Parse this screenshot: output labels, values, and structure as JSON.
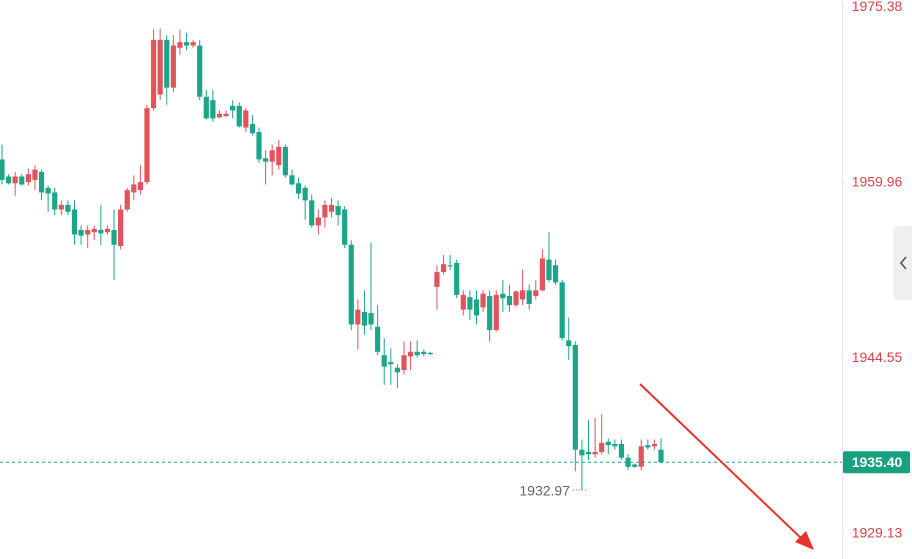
{
  "chart_data": {
    "type": "candlestick",
    "open": [
      1962.0,
      1960.5,
      1959.9,
      1960.5,
      1960.0,
      1960.2,
      1960.9,
      1959.5,
      1959.1,
      1957.6,
      1958.0,
      1957.6,
      1955.8,
      1955.4,
      1955.6,
      1955.8,
      1955.6,
      1955.8,
      1954.4,
      1957.6,
      1959.1,
      1959.3,
      1960.0,
      1966.5,
      1967.7,
      1972.5,
      1968.3,
      1971.8,
      1972.3,
      1972.0,
      1972.0,
      1967.5,
      1967.2,
      1965.7,
      1965.8,
      1966.7,
      1966.7,
      1964.8,
      1965.1,
      1964.4,
      1962.1,
      1961.8,
      1961.5,
      1963.1,
      1960.6,
      1959.9,
      1959.5,
      1958.4,
      1956.2,
      1956.9,
      1957.4,
      1957.9,
      1957.6,
      1954.5,
      1947.5,
      1948.6,
      1948.5,
      1947.3,
      1944.8,
      1944.2,
      1943.7,
      1943.5,
      1944.7,
      1945.1,
      1945.1,
      1945.0,
      1950.8,
      1952.1,
      1952.7,
      1952.9,
      1948.8,
      1949.9,
      1949.7,
      1949.0,
      1950.0,
      1947.0,
      1950.2,
      1950.0,
      1949.2,
      1949.7,
      1950.5,
      1950.0,
      1950.5,
      1953.2,
      1952.7,
      1951.2,
      1946.1,
      1945.7,
      1936.5,
      1936.3,
      1936.1,
      1936.3,
      1937.2,
      1937.0,
      1937.0,
      1935.8,
      1935.2,
      1935.0,
      1936.9,
      1936.8,
      1936.5
    ],
    "high": [
      1963.3,
      1960.7,
      1960.9,
      1960.7,
      1961.2,
      1961.5,
      1961.1,
      1959.7,
      1959.5,
      1958.4,
      1958.4,
      1958.4,
      1956.2,
      1956.2,
      1956.2,
      1958.0,
      1956.2,
      1957.6,
      1958.0,
      1959.5,
      1960.6,
      1961.5,
      1966.8,
      1973.4,
      1973.5,
      1972.9,
      1972.9,
      1973.4,
      1973.1,
      1972.5,
      1972.5,
      1968.1,
      1968.1,
      1966.3,
      1966.3,
      1967.2,
      1967.0,
      1966.5,
      1965.9,
      1964.8,
      1962.8,
      1963.3,
      1963.7,
      1963.3,
      1961.1,
      1960.4,
      1959.7,
      1958.9,
      1957.6,
      1958.4,
      1958.6,
      1958.4,
      1957.9,
      1954.9,
      1949.7,
      1950.5,
      1954.7,
      1949.2,
      1946.3,
      1945.4,
      1944.0,
      1946.0,
      1946.0,
      1946.1,
      1945.3,
      1945.1,
      1952.7,
      1953.6,
      1953.6,
      1953.2,
      1950.5,
      1950.5,
      1950.5,
      1950.5,
      1950.5,
      1950.5,
      1951.4,
      1951.0,
      1950.5,
      1952.3,
      1951.0,
      1951.4,
      1954.1,
      1955.6,
      1953.2,
      1951.4,
      1948.1,
      1946.0,
      1937.4,
      1939.1,
      1939.3,
      1939.6,
      1937.5,
      1937.4,
      1937.4,
      1936.1,
      1935.3,
      1937.4,
      1937.4,
      1937.4,
      1937.5
    ],
    "low": [
      1959.8,
      1959.8,
      1958.8,
      1959.7,
      1959.7,
      1959.3,
      1958.4,
      1957.4,
      1957.1,
      1957.1,
      1957.1,
      1954.5,
      1954.5,
      1954.2,
      1954.9,
      1954.5,
      1955.4,
      1951.4,
      1954.1,
      1957.4,
      1958.4,
      1958.9,
      1959.8,
      1966.3,
      1967.2,
      1966.8,
      1967.9,
      1971.2,
      1971.6,
      1971.8,
      1967.2,
      1965.5,
      1965.3,
      1965.6,
      1965.7,
      1965.6,
      1964.8,
      1964.4,
      1964.1,
      1961.7,
      1959.8,
      1960.6,
      1961.1,
      1960.4,
      1959.7,
      1958.5,
      1956.7,
      1956.0,
      1955.4,
      1956.0,
      1956.9,
      1956.2,
      1954.2,
      1947.0,
      1945.3,
      1946.6,
      1947.0,
      1944.8,
      1942.2,
      1942.2,
      1941.9,
      1943.1,
      1943.5,
      1944.6,
      1944.7,
      1944.8,
      1948.8,
      1951.9,
      1952.3,
      1949.8,
      1948.3,
      1947.9,
      1947.5,
      1948.6,
      1946.0,
      1946.9,
      1948.6,
      1948.6,
      1949.0,
      1949.2,
      1948.8,
      1949.7,
      1950.4,
      1951.2,
      1951.0,
      1946.1,
      1944.4,
      1934.6,
      1932.97,
      1935.6,
      1935.8,
      1936.1,
      1936.1,
      1936.5,
      1935.6,
      1934.7,
      1934.9,
      1934.7,
      1936.5,
      1936.5,
      1935.3
    ],
    "close": [
      1960.2,
      1959.9,
      1960.5,
      1959.8,
      1960.7,
      1961.1,
      1959.1,
      1959.0,
      1957.6,
      1958.0,
      1957.4,
      1955.4,
      1955.3,
      1955.8,
      1955.9,
      1955.5,
      1955.9,
      1954.5,
      1957.6,
      1959.3,
      1959.8,
      1960.0,
      1966.5,
      1972.5,
      1972.5,
      1968.3,
      1972.0,
      1972.3,
      1972.0,
      1972.3,
      1967.5,
      1965.6,
      1965.6,
      1966.0,
      1966.0,
      1966.3,
      1964.9,
      1966.3,
      1964.3,
      1962.0,
      1961.8,
      1962.8,
      1963.1,
      1960.6,
      1959.8,
      1959.0,
      1958.4,
      1956.2,
      1956.9,
      1958.0,
      1958.0,
      1957.1,
      1954.5,
      1947.5,
      1948.8,
      1947.4,
      1947.5,
      1945.1,
      1943.8,
      1944.0,
      1943.3,
      1944.8,
      1945.1,
      1944.8,
      1944.9,
      1944.9,
      1952.1,
      1952.8,
      1952.6,
      1950.1,
      1950.1,
      1948.8,
      1948.3,
      1950.2,
      1947.0,
      1950.1,
      1949.8,
      1949.2,
      1950.4,
      1950.5,
      1949.3,
      1950.5,
      1953.3,
      1951.4,
      1951.2,
      1946.3,
      1945.6,
      1936.5,
      1936.0,
      1936.1,
      1936.3,
      1937.1,
      1936.9,
      1936.8,
      1935.8,
      1935.0,
      1935.0,
      1936.8,
      1936.7,
      1937.0,
      1935.4
    ],
    "up_color": "#e2545c",
    "down_color": "#1ba68a",
    "ylim": [
      1926.9,
      1976.0
    ],
    "yticks": [
      1975.38,
      1959.96,
      1944.55,
      1929.13
    ],
    "last_price": {
      "value": 1935.4,
      "label": "1935.40"
    },
    "low_marker": {
      "value": 1932.97,
      "label": "1932.97"
    }
  }
}
